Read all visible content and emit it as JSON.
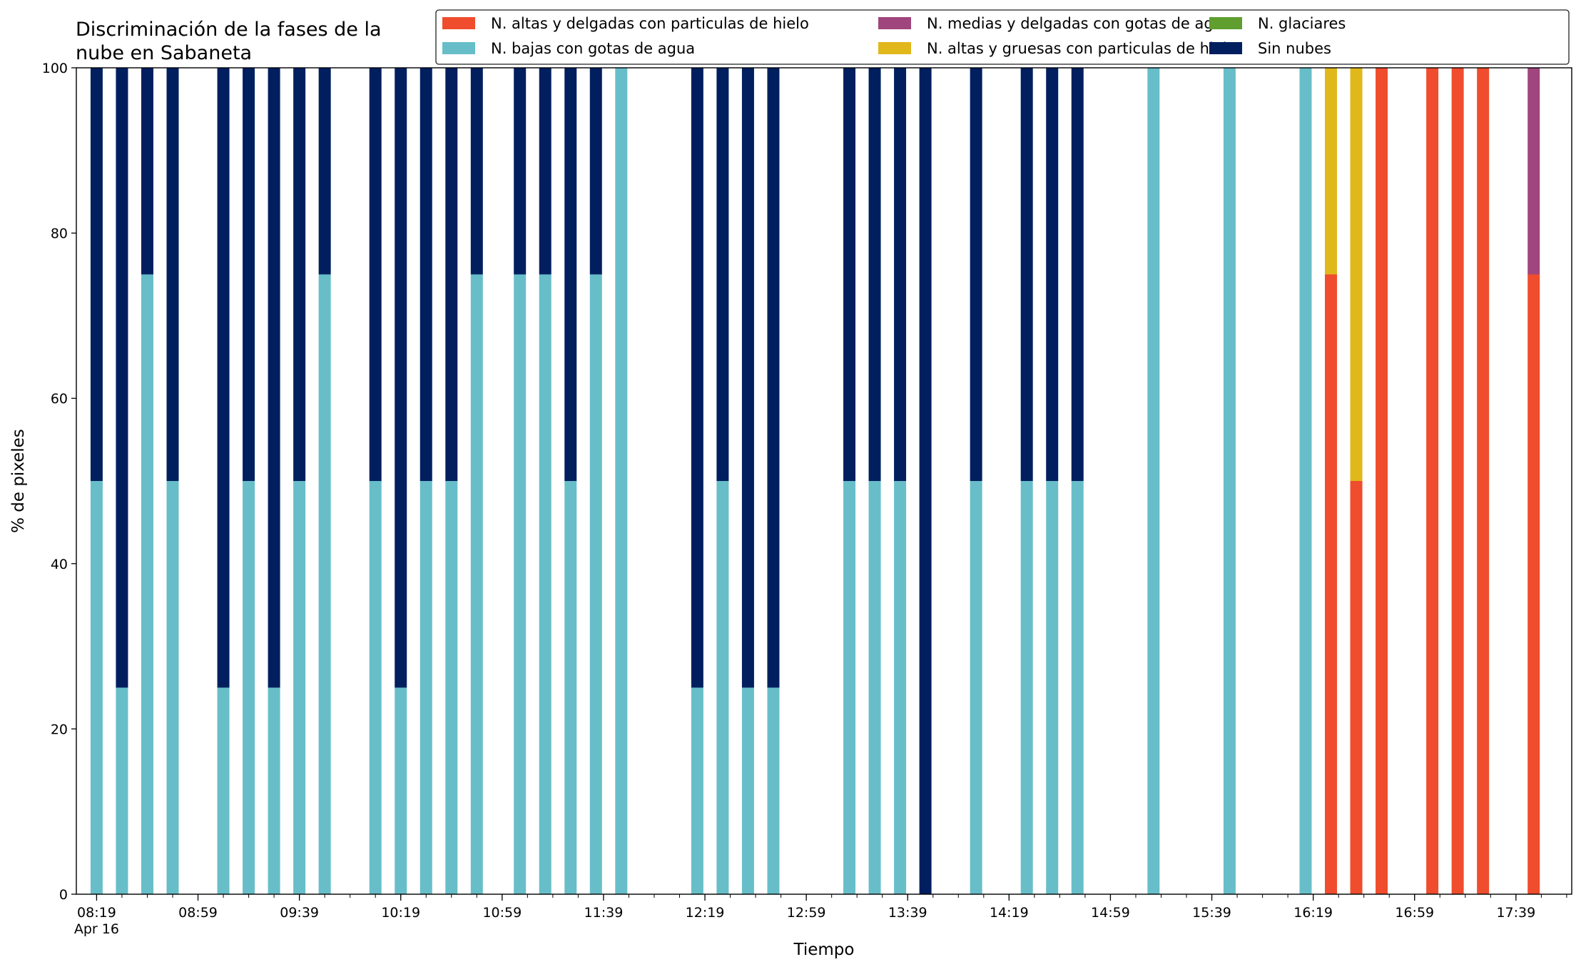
{
  "chart_data": {
    "type": "bar",
    "stacked": true,
    "title": "Discriminación de la fases de la\nnube en Sabaneta",
    "xlabel": "Tiempo",
    "ylabel": "% de pixeles",
    "ylim": [
      0,
      100
    ],
    "yticks": [
      0,
      20,
      40,
      60,
      80,
      100
    ],
    "xlim": [
      "08:11",
      "18:01"
    ],
    "date_label": "Apr 16",
    "xtick_labels": [
      "08:19",
      "08:59",
      "09:39",
      "10:19",
      "10:59",
      "11:39",
      "12:19",
      "12:59",
      "13:39",
      "14:19",
      "14:59",
      "15:39",
      "16:19",
      "16:59",
      "17:39"
    ],
    "minor_tick_minutes": 10,
    "legend_placement": "top-right",
    "grid": false,
    "series": [
      {
        "name": "N. altas y delgadas con particulas de hielo",
        "color": "#ef4d2d"
      },
      {
        "name": "N. altas y gruesas con particulas de hielo",
        "color": "#e1b81b"
      },
      {
        "name": "N. bajas con gotas de agua",
        "color": "#67bec9"
      },
      {
        "name": "N. glaciares",
        "color": "#5f9e2f"
      },
      {
        "name": "N. medias y delgadas con gotas de agua",
        "color": "#a0457d"
      },
      {
        "name": "Sin nubes",
        "color": "#011f5f"
      }
    ],
    "legend_order": [
      0,
      2,
      4,
      1,
      3,
      5
    ],
    "bars": [
      {
        "x": "08:19",
        "values": [
          0,
          0,
          50,
          0,
          0,
          50
        ]
      },
      {
        "x": "08:29",
        "values": [
          0,
          0,
          25,
          0,
          0,
          75
        ]
      },
      {
        "x": "08:39",
        "values": [
          0,
          0,
          75,
          0,
          0,
          25
        ]
      },
      {
        "x": "08:49",
        "values": [
          0,
          0,
          50,
          0,
          0,
          50
        ]
      },
      {
        "x": "09:09",
        "values": [
          0,
          0,
          25,
          0,
          0,
          75
        ]
      },
      {
        "x": "09:19",
        "values": [
          0,
          0,
          50,
          0,
          0,
          50
        ]
      },
      {
        "x": "09:29",
        "values": [
          0,
          0,
          25,
          0,
          0,
          75
        ]
      },
      {
        "x": "09:39",
        "values": [
          0,
          0,
          50,
          0,
          0,
          50
        ]
      },
      {
        "x": "09:49",
        "values": [
          0,
          0,
          75,
          0,
          0,
          25
        ]
      },
      {
        "x": "10:09",
        "values": [
          0,
          0,
          50,
          0,
          0,
          50
        ]
      },
      {
        "x": "10:19",
        "values": [
          0,
          0,
          25,
          0,
          0,
          75
        ]
      },
      {
        "x": "10:29",
        "values": [
          0,
          0,
          50,
          0,
          0,
          50
        ]
      },
      {
        "x": "10:39",
        "values": [
          0,
          0,
          50,
          0,
          0,
          50
        ]
      },
      {
        "x": "10:49",
        "values": [
          0,
          0,
          75,
          0,
          0,
          25
        ]
      },
      {
        "x": "11:06",
        "values": [
          0,
          0,
          75,
          0,
          0,
          25
        ]
      },
      {
        "x": "11:16",
        "values": [
          0,
          0,
          75,
          0,
          0,
          25
        ]
      },
      {
        "x": "11:26",
        "values": [
          0,
          0,
          50,
          0,
          0,
          50
        ]
      },
      {
        "x": "11:36",
        "values": [
          0,
          0,
          75,
          0,
          0,
          25
        ]
      },
      {
        "x": "11:46",
        "values": [
          0,
          0,
          100,
          0,
          0,
          0
        ]
      },
      {
        "x": "12:16",
        "values": [
          0,
          0,
          25,
          0,
          0,
          75
        ]
      },
      {
        "x": "12:26",
        "values": [
          0,
          0,
          50,
          0,
          0,
          50
        ]
      },
      {
        "x": "12:36",
        "values": [
          0,
          0,
          25,
          0,
          0,
          75
        ]
      },
      {
        "x": "12:46",
        "values": [
          0,
          0,
          25,
          0,
          0,
          75
        ]
      },
      {
        "x": "13:16",
        "values": [
          0,
          0,
          50,
          0,
          0,
          50
        ]
      },
      {
        "x": "13:26",
        "values": [
          0,
          0,
          50,
          0,
          0,
          50
        ]
      },
      {
        "x": "13:36",
        "values": [
          0,
          0,
          50,
          0,
          0,
          50
        ]
      },
      {
        "x": "13:46",
        "values": [
          0,
          0,
          0,
          0,
          0,
          100
        ]
      },
      {
        "x": "14:06",
        "values": [
          0,
          0,
          50,
          0,
          0,
          50
        ]
      },
      {
        "x": "14:26",
        "values": [
          0,
          0,
          50,
          0,
          0,
          50
        ]
      },
      {
        "x": "14:36",
        "values": [
          0,
          0,
          50,
          0,
          0,
          50
        ]
      },
      {
        "x": "14:46",
        "values": [
          0,
          0,
          50,
          0,
          0,
          50
        ]
      },
      {
        "x": "15:16",
        "values": [
          0,
          0,
          100,
          0,
          0,
          0
        ]
      },
      {
        "x": "15:46",
        "values": [
          0,
          0,
          100,
          0,
          0,
          0
        ]
      },
      {
        "x": "16:16",
        "values": [
          0,
          0,
          100,
          0,
          0,
          0
        ]
      },
      {
        "x": "16:26",
        "values": [
          75,
          25,
          0,
          0,
          0,
          0
        ]
      },
      {
        "x": "16:36",
        "values": [
          50,
          50,
          0,
          0,
          0,
          0
        ]
      },
      {
        "x": "16:46",
        "values": [
          100,
          0,
          0,
          0,
          0,
          0
        ]
      },
      {
        "x": "17:06",
        "values": [
          100,
          0,
          0,
          0,
          0,
          0
        ]
      },
      {
        "x": "17:16",
        "values": [
          100,
          0,
          0,
          0,
          0,
          0
        ]
      },
      {
        "x": "17:26",
        "values": [
          100,
          0,
          0,
          0,
          0,
          0
        ]
      },
      {
        "x": "17:46",
        "values": [
          75,
          0,
          0,
          0,
          25,
          0
        ]
      }
    ]
  }
}
